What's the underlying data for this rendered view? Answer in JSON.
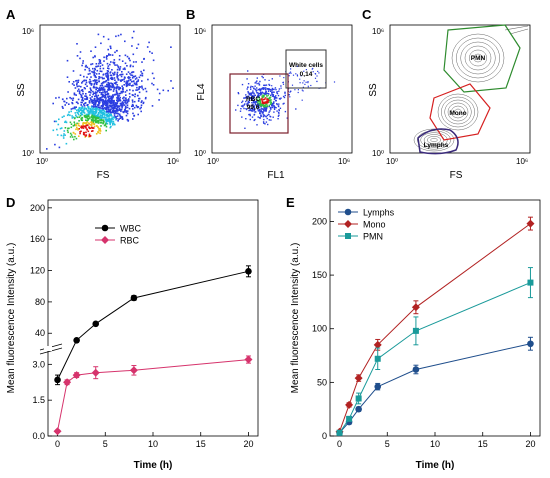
{
  "panels": [
    {
      "id": "A",
      "label": "A",
      "xlabel": "FS",
      "ylabel": "SS",
      "x_ticks": [
        "10⁰",
        "10⁶"
      ],
      "y_ticks": [
        "10⁰",
        "10⁶"
      ]
    },
    {
      "id": "B",
      "label": "B",
      "xlabel": "FL1",
      "ylabel": "FL4",
      "x_ticks": [
        "10⁰",
        "10⁶"
      ],
      "y_ticks": [
        "10⁰",
        "10⁶"
      ],
      "gates": [
        {
          "name": "RBC",
          "value": "99,6",
          "color": "#7b1f2c"
        },
        {
          "name": "White cells",
          "value": "0,14",
          "color": "#333333"
        }
      ]
    },
    {
      "id": "C",
      "label": "C",
      "xlabel": "FS",
      "ylabel": "SS",
      "x_ticks": [
        "10⁰",
        "10⁶"
      ],
      "y_ticks": [
        "10⁰",
        "10⁶"
      ],
      "gates": [
        {
          "name": "PMN",
          "color": "#2e8b2e"
        },
        {
          "name": "Mono",
          "color": "#d62020"
        },
        {
          "name": "Lymphs",
          "color": "#3a2a7a"
        }
      ]
    }
  ],
  "chart_data": [
    {
      "panel": "D",
      "label": "D",
      "type": "line",
      "xlabel": "Time (h)",
      "ylabel": "Mean fluorescence Intensity (a.u.)",
      "xlim": [
        -1,
        21
      ],
      "x_ticks": [
        0,
        5,
        10,
        15,
        20
      ],
      "y_ticks": [
        0.0,
        1.5,
        3.0,
        40,
        80,
        120,
        160,
        200
      ],
      "y_tick_labels": [
        "0.0",
        "1.5",
        "3.0",
        "40",
        "80",
        "120",
        "160",
        "200"
      ],
      "broken_axis": true,
      "legend_position": "top-left",
      "series": [
        {
          "name": "WBC",
          "color": "#000000",
          "marker": "circle",
          "x": [
            0,
            2,
            4,
            8,
            20
          ],
          "y": [
            2.35,
            31,
            52,
            85,
            119
          ],
          "err": [
            0.2,
            1,
            2,
            3,
            7
          ]
        },
        {
          "name": "RBC",
          "color": "#d6336c",
          "marker": "diamond",
          "x": [
            0,
            1,
            2,
            4,
            8,
            20
          ],
          "y": [
            0.2,
            2.25,
            2.55,
            2.65,
            2.75,
            3.2
          ],
          "err": [
            0.05,
            0.1,
            0.1,
            0.25,
            0.2,
            0.15
          ]
        }
      ]
    },
    {
      "panel": "E",
      "label": "E",
      "type": "line",
      "xlabel": "Time (h)",
      "ylabel": "Mean fluorescence Intensity (a.u.)",
      "xlim": [
        -1,
        21
      ],
      "ylim": [
        0,
        220
      ],
      "x_ticks": [
        0,
        5,
        10,
        15,
        20
      ],
      "y_ticks": [
        0,
        50,
        100,
        150,
        200
      ],
      "legend_position": "top-left",
      "series": [
        {
          "name": "Lymphs",
          "color": "#1f4e8c",
          "marker": "circle",
          "x": [
            0,
            1,
            2,
            4,
            8,
            20
          ],
          "y": [
            3,
            13,
            25,
            46,
            62,
            86
          ],
          "err": [
            1,
            2,
            2,
            3,
            4,
            6
          ]
        },
        {
          "name": "Mono",
          "color": "#b22222",
          "marker": "diamond",
          "x": [
            0,
            1,
            2,
            4,
            8,
            20
          ],
          "y": [
            4,
            29,
            54,
            85,
            120,
            198
          ],
          "err": [
            1,
            2,
            3,
            5,
            6,
            6
          ]
        },
        {
          "name": "PMN",
          "color": "#1a9a9a",
          "marker": "square",
          "x": [
            0,
            1,
            2,
            4,
            8,
            20
          ],
          "y": [
            3,
            16,
            35,
            72,
            98,
            143
          ],
          "err": [
            1,
            2,
            5,
            10,
            13,
            14
          ]
        }
      ]
    }
  ]
}
